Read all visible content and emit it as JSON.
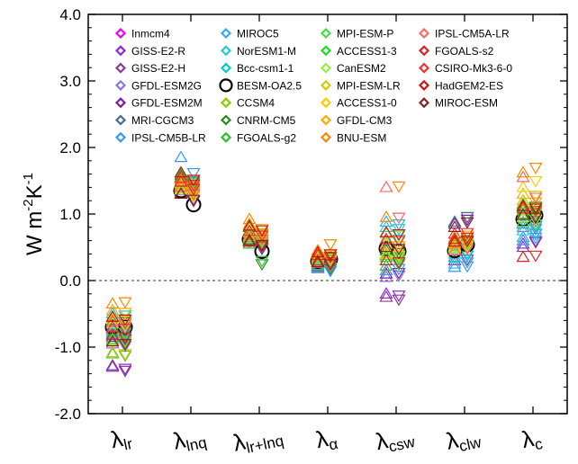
{
  "chart_data": {
    "type": "scatter",
    "ylabel": "W m",
    "ylabel_sup1": "-2",
    "ylabel_mid": "K",
    "ylabel_sup2": "-1",
    "ylim": [
      -2.0,
      4.0
    ],
    "yticks": [
      "-2.0",
      "-1.0",
      "0.0",
      "1.0",
      "2.0",
      "3.0",
      "4.0"
    ],
    "ytick_values": [
      -2,
      -1,
      0,
      1,
      2,
      3,
      4
    ],
    "zero_line": "dashed",
    "categories": [
      {
        "symbol": "λ",
        "sub": "lr"
      },
      {
        "symbol": "λ",
        "sub": "lnq"
      },
      {
        "symbol": "λ",
        "sub": "lr+lnq"
      },
      {
        "symbol": "λ",
        "sub": "α"
      },
      {
        "symbol": "λ",
        "sub": "csw"
      },
      {
        "symbol": "λ",
        "sub": "clw"
      },
      {
        "symbol": "λ",
        "sub": "c"
      }
    ],
    "marker_kinds": [
      "up-triangle",
      "down-triangle"
    ],
    "legend_placement": "top",
    "series": [
      {
        "name": "Inmcm4",
        "color": "#ee00ee",
        "marker": "diamond",
        "up": [
          -0.72,
          1.38,
          0.62,
          0.3,
          0.4,
          0.45,
          0.95
        ],
        "down": [
          -0.75,
          1.3,
          0.55,
          0.28,
          0.42,
          0.5,
          0.9
        ]
      },
      {
        "name": "GISS-E2-R",
        "color": "#8a2be2",
        "marker": "diamond",
        "up": [
          -1.28,
          1.3,
          0.58,
          0.22,
          -0.2,
          0.35,
          0.55
        ],
        "down": [
          -1.35,
          1.2,
          0.5,
          0.2,
          -0.22,
          0.38,
          0.6
        ]
      },
      {
        "name": "GISS-E2-H",
        "color": "#8b3a8b",
        "marker": "diamond",
        "up": [
          -1.3,
          1.32,
          0.6,
          0.2,
          -0.25,
          0.3,
          0.5
        ],
        "down": [
          -1.32,
          1.22,
          0.48,
          0.18,
          -0.28,
          0.32,
          0.58
        ]
      },
      {
        "name": "GFDL-ESM2G",
        "color": "#9370db",
        "marker": "diamond",
        "up": [
          -0.95,
          1.35,
          0.62,
          0.28,
          0.05,
          0.55,
          0.8
        ],
        "down": [
          -0.98,
          1.28,
          0.55,
          0.25,
          0.08,
          0.6,
          0.78
        ]
      },
      {
        "name": "GFDL-ESM2M",
        "color": "#7b1fa2",
        "marker": "diamond",
        "up": [
          -0.85,
          1.4,
          0.65,
          0.3,
          0.1,
          0.85,
          0.85
        ],
        "down": [
          -0.88,
          1.3,
          0.58,
          0.28,
          0.12,
          0.92,
          0.82
        ]
      },
      {
        "name": "MRI-CGCM3",
        "color": "#4a6a8a",
        "marker": "diamond",
        "up": [
          -0.65,
          1.55,
          0.7,
          0.35,
          0.3,
          0.88,
          1.0
        ],
        "down": [
          -0.68,
          1.45,
          0.62,
          0.32,
          0.28,
          0.96,
          0.98
        ]
      },
      {
        "name": "IPSL-CM5B-LR",
        "color": "#3399ff",
        "marker": "diamond",
        "up": [
          -0.8,
          1.85,
          0.72,
          0.18,
          0.15,
          0.2,
          0.6
        ],
        "down": [
          -0.82,
          1.62,
          0.7,
          0.15,
          0.18,
          0.22,
          0.65
        ]
      },
      {
        "name": "MIROC5",
        "color": "#33aaee",
        "marker": "diamond",
        "up": [
          -0.78,
          1.45,
          0.66,
          0.24,
          0.88,
          0.25,
          0.65
        ],
        "down": [
          -0.8,
          1.35,
          0.6,
          0.22,
          0.85,
          0.28,
          0.7
        ]
      },
      {
        "name": "NorESM1-M",
        "color": "#22cccc",
        "marker": "diamond",
        "up": [
          -0.55,
          1.42,
          0.68,
          0.26,
          0.8,
          0.4,
          0.75
        ],
        "down": [
          -0.58,
          1.32,
          0.62,
          0.24,
          0.78,
          0.42,
          0.72
        ]
      },
      {
        "name": "Bcc-csm1-1",
        "color": "#00cccc",
        "marker": "diamond",
        "up": [
          -0.5,
          1.48,
          0.7,
          0.28,
          0.6,
          0.35,
          0.85
        ],
        "down": [
          -0.52,
          1.38,
          0.65,
          0.26,
          0.62,
          0.38,
          0.82
        ]
      },
      {
        "name": "BESM-OA2.5",
        "color": "#000000",
        "marker": "circle",
        "up": [
          -0.7,
          1.35,
          0.62,
          0.29,
          0.48,
          0.45,
          0.92
        ],
        "down": [
          -0.7,
          1.14,
          0.44,
          0.32,
          0.44,
          0.54,
          0.98
        ]
      },
      {
        "name": "CCSM4",
        "color": "#88cc00",
        "marker": "diamond",
        "up": [
          -0.9,
          1.5,
          0.75,
          0.32,
          0.55,
          0.5,
          1.05
        ],
        "down": [
          -0.92,
          1.4,
          0.7,
          0.3,
          0.52,
          0.55,
          1.02
        ]
      },
      {
        "name": "CNRM-CM5",
        "color": "#228b22",
        "marker": "diamond",
        "up": [
          -0.6,
          1.58,
          0.8,
          0.38,
          0.45,
          0.6,
          1.1
        ],
        "down": [
          -0.62,
          1.48,
          0.25,
          0.36,
          0.42,
          0.65,
          1.08
        ]
      },
      {
        "name": "FGOALS-g2",
        "color": "#33bb33",
        "marker": "diamond",
        "up": [
          -1.1,
          1.6,
          0.55,
          0.22,
          0.22,
          0.55,
          1.0
        ],
        "down": [
          -1.12,
          1.5,
          0.3,
          0.2,
          0.25,
          0.58,
          0.95
        ]
      },
      {
        "name": "MPI-ESM-P",
        "color": "#44dd44",
        "marker": "diamond",
        "up": [
          -0.88,
          1.44,
          0.64,
          0.34,
          0.38,
          0.52,
          0.88
        ],
        "down": [
          -0.9,
          1.34,
          0.58,
          0.32,
          0.36,
          0.55,
          0.85
        ]
      },
      {
        "name": "ACCESS1-3",
        "color": "#22dd22",
        "marker": "diamond",
        "up": [
          -0.75,
          1.4,
          0.62,
          0.3,
          0.35,
          0.6,
          1.15
        ],
        "down": [
          -0.78,
          1.3,
          0.56,
          0.28,
          0.33,
          0.62,
          1.12
        ]
      },
      {
        "name": "CanESM2",
        "color": "#99ee44",
        "marker": "diamond",
        "up": [
          -0.65,
          1.36,
          0.6,
          0.32,
          0.7,
          0.48,
          0.95
        ],
        "down": [
          -0.68,
          1.26,
          0.54,
          0.3,
          0.68,
          0.52,
          0.92
        ]
      },
      {
        "name": "MPI-ESM-LR",
        "color": "#cccc00",
        "marker": "diamond",
        "up": [
          -1.08,
          1.46,
          0.66,
          0.36,
          0.5,
          0.56,
          1.3
        ],
        "down": [
          -1.1,
          1.36,
          0.6,
          0.34,
          0.48,
          0.58,
          1.28
        ]
      },
      {
        "name": "ACCESS1-0",
        "color": "#ffcc00",
        "marker": "diamond",
        "up": [
          -0.58,
          1.38,
          0.72,
          0.4,
          0.4,
          0.5,
          1.4
        ],
        "down": [
          -0.6,
          1.28,
          0.66,
          0.38,
          0.38,
          0.52,
          1.5
        ]
      },
      {
        "name": "GFDL-CM3",
        "color": "#ffaa00",
        "marker": "diamond",
        "up": [
          -0.45,
          1.42,
          0.85,
          0.42,
          0.55,
          0.65,
          1.2
        ],
        "down": [
          -0.48,
          1.32,
          0.78,
          0.4,
          0.52,
          0.68,
          1.18
        ]
      },
      {
        "name": "BNU-ESM",
        "color": "#ff8800",
        "marker": "diamond",
        "up": [
          -0.35,
          1.52,
          0.92,
          0.45,
          0.95,
          0.55,
          1.62
        ],
        "down": [
          -0.32,
          1.42,
          0.72,
          0.55,
          1.42,
          0.6,
          1.7
        ]
      },
      {
        "name": "IPSL-CM5A-LR",
        "color": "#ff6666",
        "marker": "diamond",
        "up": [
          -0.62,
          1.4,
          0.68,
          0.26,
          1.4,
          0.45,
          1.55
        ],
        "down": [
          -0.65,
          1.3,
          0.62,
          0.24,
          0.95,
          0.48,
          1.25
        ]
      },
      {
        "name": "FGOALS-s2",
        "color": "#dd2222",
        "marker": "diamond",
        "up": [
          -0.82,
          1.48,
          0.58,
          0.38,
          0.3,
          0.62,
          0.35
        ],
        "down": [
          -0.85,
          1.38,
          0.52,
          0.36,
          0.28,
          0.65,
          0.38
        ]
      },
      {
        "name": "CSIRO-Mk3-6-0",
        "color": "#ee3333",
        "marker": "diamond",
        "up": [
          -0.7,
          1.54,
          0.74,
          0.3,
          0.62,
          0.7,
          1.08
        ],
        "down": [
          -0.72,
          1.44,
          0.68,
          0.28,
          0.6,
          0.72,
          1.05
        ]
      },
      {
        "name": "HadGEM2-ES",
        "color": "#cc1111",
        "marker": "diamond",
        "up": [
          -0.55,
          1.62,
          0.82,
          0.42,
          0.72,
          0.58,
          1.12
        ],
        "down": [
          -0.58,
          1.52,
          0.76,
          0.4,
          0.7,
          0.6,
          1.1
        ]
      },
      {
        "name": "MIROC-ESM",
        "color": "#8b2222",
        "marker": "diamond",
        "up": [
          -0.92,
          1.3,
          0.6,
          0.27,
          0.5,
          0.8,
          0.98
        ],
        "down": [
          -0.95,
          1.22,
          0.54,
          0.25,
          0.48,
          0.88,
          0.95
        ]
      }
    ]
  }
}
